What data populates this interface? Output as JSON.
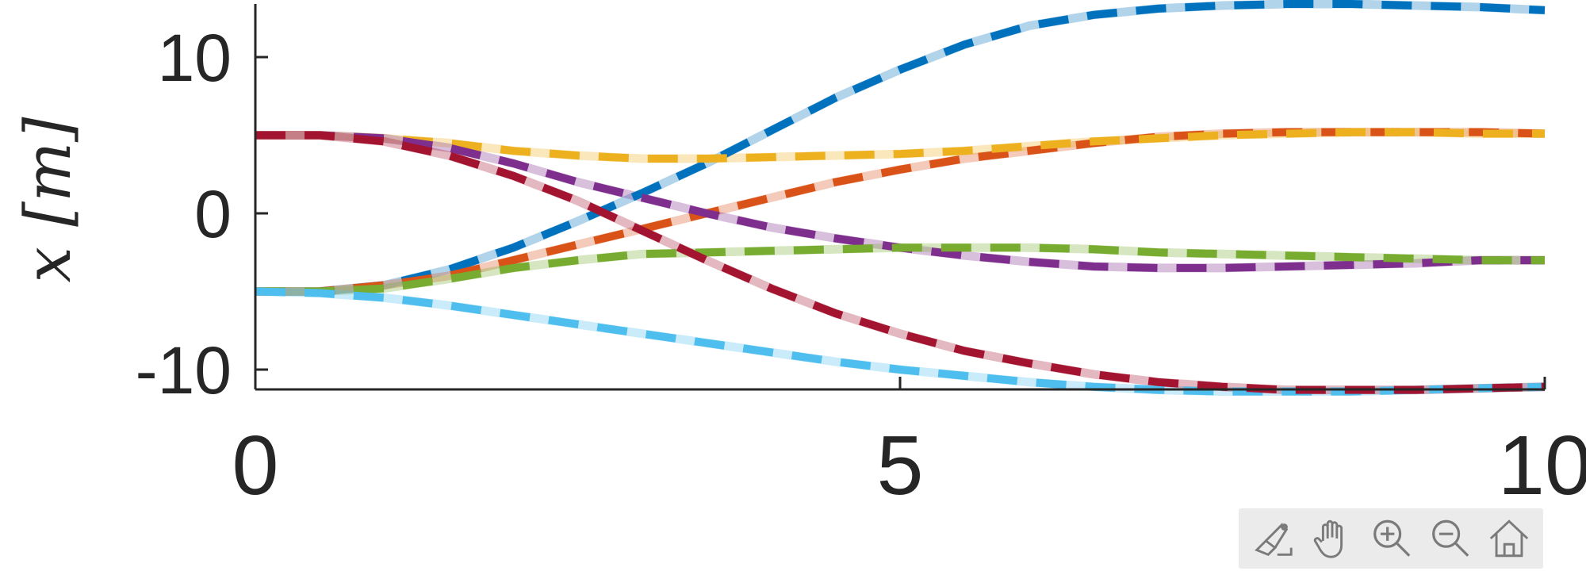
{
  "chart_data": {
    "type": "line",
    "title": "",
    "xlabel": "",
    "ylabel": "x [m]",
    "xlim": [
      0,
      10
    ],
    "ylim": [
      -11.5,
      13.5
    ],
    "x_ticks": [
      0,
      5,
      10
    ],
    "x_tick_labels": [
      "0",
      "5",
      "10"
    ],
    "y_ticks": [
      10,
      0,
      -10
    ],
    "y_tick_labels": [
      "10",
      "0",
      "-10"
    ],
    "grid": false,
    "legend": "none",
    "line_styles": {
      "reference": "solid, light/transparent",
      "tracked": "dashed, dark"
    },
    "series": [
      {
        "color": "#0072BD",
        "x": [
          0,
          0.5,
          1,
          1.5,
          2,
          2.5,
          3,
          3.5,
          4,
          4.5,
          5,
          5.5,
          6,
          6.5,
          7,
          7.5,
          8,
          8.5,
          9,
          9.5,
          10
        ],
        "values": [
          -5,
          -5,
          -4.6,
          -3.6,
          -2.2,
          -0.5,
          1.3,
          3.2,
          5.3,
          7.4,
          9.2,
          10.8,
          12.0,
          12.7,
          13.1,
          13.3,
          13.4,
          13.4,
          13.3,
          13.2,
          13.0
        ]
      },
      {
        "color": "#D95319",
        "x": [
          0,
          0.5,
          1,
          1.5,
          2,
          2.5,
          3,
          3.5,
          4,
          4.5,
          5,
          5.5,
          6,
          6.5,
          7,
          7.5,
          8,
          8.5,
          9,
          9.5,
          10
        ],
        "values": [
          -5,
          -5,
          -4.6,
          -4.0,
          -3.0,
          -2.0,
          -1.0,
          0,
          1.0,
          2.0,
          2.8,
          3.5,
          4.0,
          4.5,
          4.9,
          5.1,
          5.2,
          5.2,
          5.2,
          5.2,
          5.1
        ]
      },
      {
        "color": "#EDB120",
        "x": [
          0,
          0.5,
          1,
          1.5,
          2,
          2.5,
          3,
          3.5,
          4,
          4.5,
          5,
          5.5,
          6,
          6.5,
          7,
          7.5,
          8,
          8.5,
          9,
          9.5,
          10
        ],
        "values": [
          5,
          5,
          4.8,
          4.5,
          4.0,
          3.7,
          3.5,
          3.5,
          3.6,
          3.7,
          3.8,
          4.0,
          4.3,
          4.6,
          4.8,
          5.0,
          5.1,
          5.2,
          5.2,
          5.1,
          5.1
        ]
      },
      {
        "color": "#7E2F8E",
        "x": [
          0,
          0.5,
          1,
          1.5,
          2,
          2.5,
          3,
          3.5,
          4,
          4.5,
          5,
          5.5,
          6,
          6.5,
          7,
          7.5,
          8,
          8.5,
          9,
          9.5,
          10
        ],
        "values": [
          5,
          5,
          4.8,
          4.2,
          3.2,
          2.0,
          1.0,
          0,
          -0.9,
          -1.6,
          -2.2,
          -2.7,
          -3.1,
          -3.4,
          -3.5,
          -3.5,
          -3.4,
          -3.3,
          -3.2,
          -3.0,
          -3.0
        ]
      },
      {
        "color": "#77AC30",
        "x": [
          0,
          0.5,
          1,
          1.5,
          2,
          2.5,
          3,
          3.5,
          4,
          4.5,
          5,
          5.5,
          6,
          6.5,
          7,
          7.5,
          8,
          8.5,
          9,
          9.5,
          10
        ],
        "values": [
          -5,
          -5,
          -4.8,
          -4.2,
          -3.5,
          -3.0,
          -2.6,
          -2.5,
          -2.4,
          -2.3,
          -2.2,
          -2.2,
          -2.2,
          -2.3,
          -2.5,
          -2.6,
          -2.7,
          -2.8,
          -2.9,
          -3.0,
          -3.0
        ]
      },
      {
        "color": "#4DBEEE",
        "x": [
          0,
          0.5,
          1,
          1.5,
          2,
          2.5,
          3,
          3.5,
          4,
          4.5,
          5,
          5.5,
          6,
          6.5,
          7,
          7.5,
          8,
          8.5,
          9,
          9.5,
          10
        ],
        "values": [
          -5,
          -5.1,
          -5.4,
          -5.9,
          -6.5,
          -7.1,
          -7.7,
          -8.3,
          -8.9,
          -9.5,
          -10.0,
          -10.4,
          -10.8,
          -11.1,
          -11.3,
          -11.4,
          -11.4,
          -11.4,
          -11.3,
          -11.2,
          -11.1
        ]
      },
      {
        "color": "#A2142F",
        "x": [
          0,
          0.5,
          1,
          1.5,
          2,
          2.5,
          3,
          3.5,
          4,
          4.5,
          5,
          5.5,
          6,
          6.5,
          7,
          7.5,
          8,
          8.5,
          9,
          9.5,
          10
        ],
        "values": [
          5,
          5,
          4.6,
          3.7,
          2.4,
          0.8,
          -1.1,
          -3.0,
          -4.8,
          -6.4,
          -7.7,
          -8.8,
          -9.6,
          -10.3,
          -10.8,
          -11.1,
          -11.3,
          -11.3,
          -11.3,
          -11.2,
          -11.1
        ]
      }
    ]
  },
  "toolbar": {
    "icons": [
      "brush-icon",
      "pan-hand-icon",
      "zoom-in-icon",
      "zoom-out-icon",
      "home-icon"
    ]
  }
}
